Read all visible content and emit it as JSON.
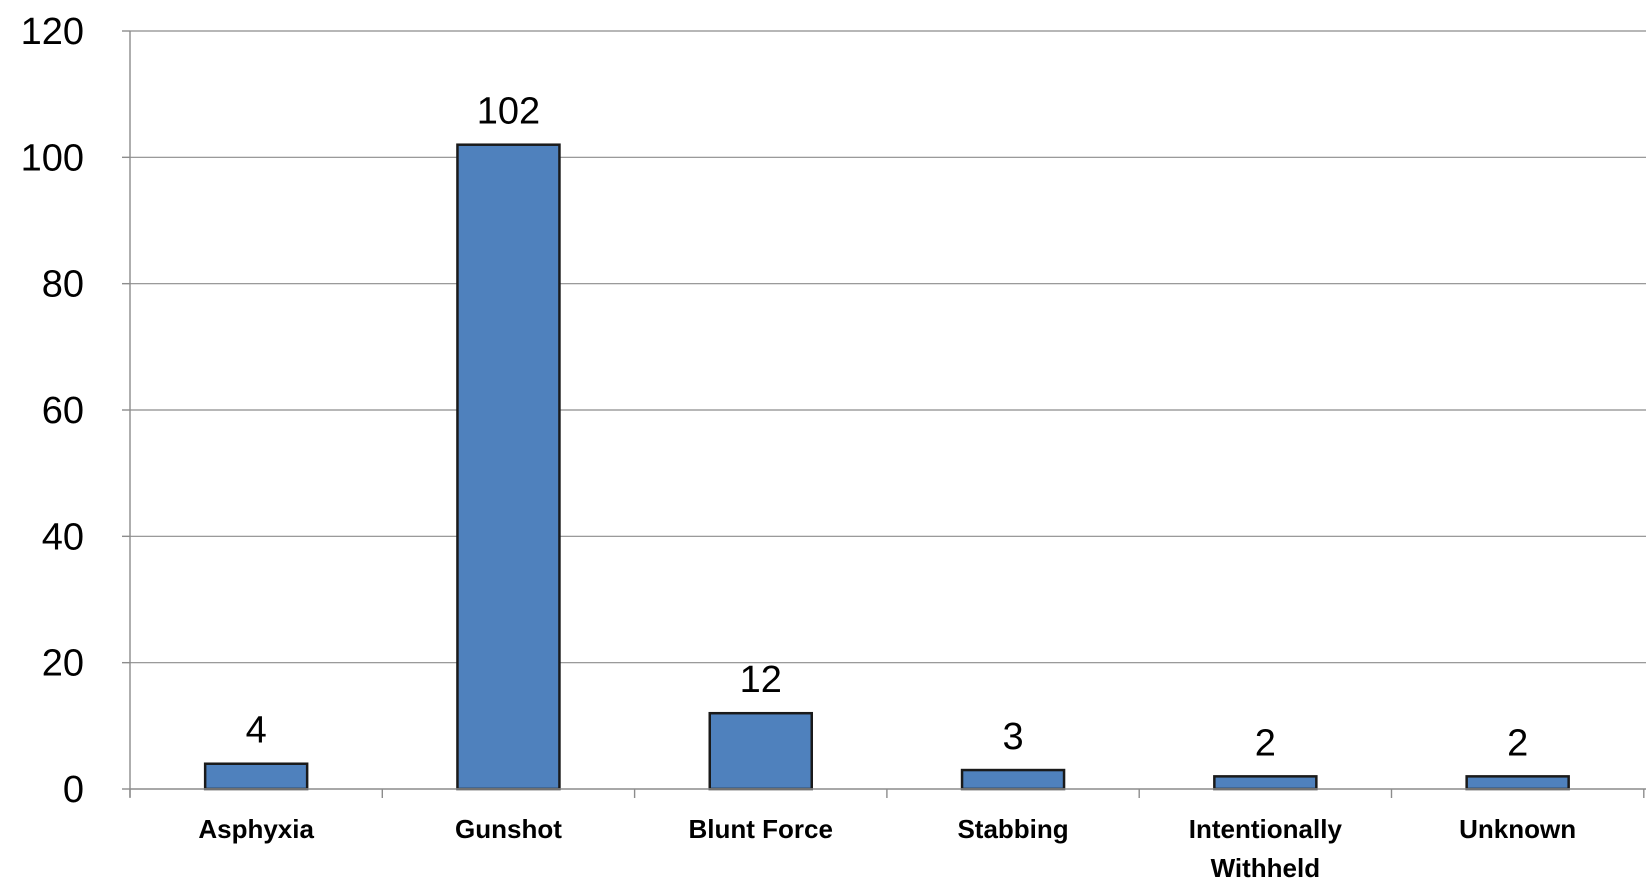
{
  "chart_data": {
    "type": "bar",
    "categories": [
      "Asphyxia",
      "Gunshot",
      "Blunt Force",
      "Stabbing",
      "Intentionally\nWithheld",
      "Unknown"
    ],
    "values": [
      4,
      102,
      12,
      3,
      2,
      2
    ],
    "data_labels": [
      "4",
      "102",
      "12",
      "3",
      "2",
      "2"
    ],
    "title": "",
    "xlabel": "",
    "ylabel": "",
    "ylim": [
      0,
      120
    ],
    "y_ticks": [
      0,
      20,
      40,
      60,
      80,
      100,
      120
    ],
    "grid": true,
    "legend": "none",
    "bar_color": "#4f81bd",
    "bar_outline_color": "#1a1a1a",
    "grid_color": "#8c8c8c"
  }
}
